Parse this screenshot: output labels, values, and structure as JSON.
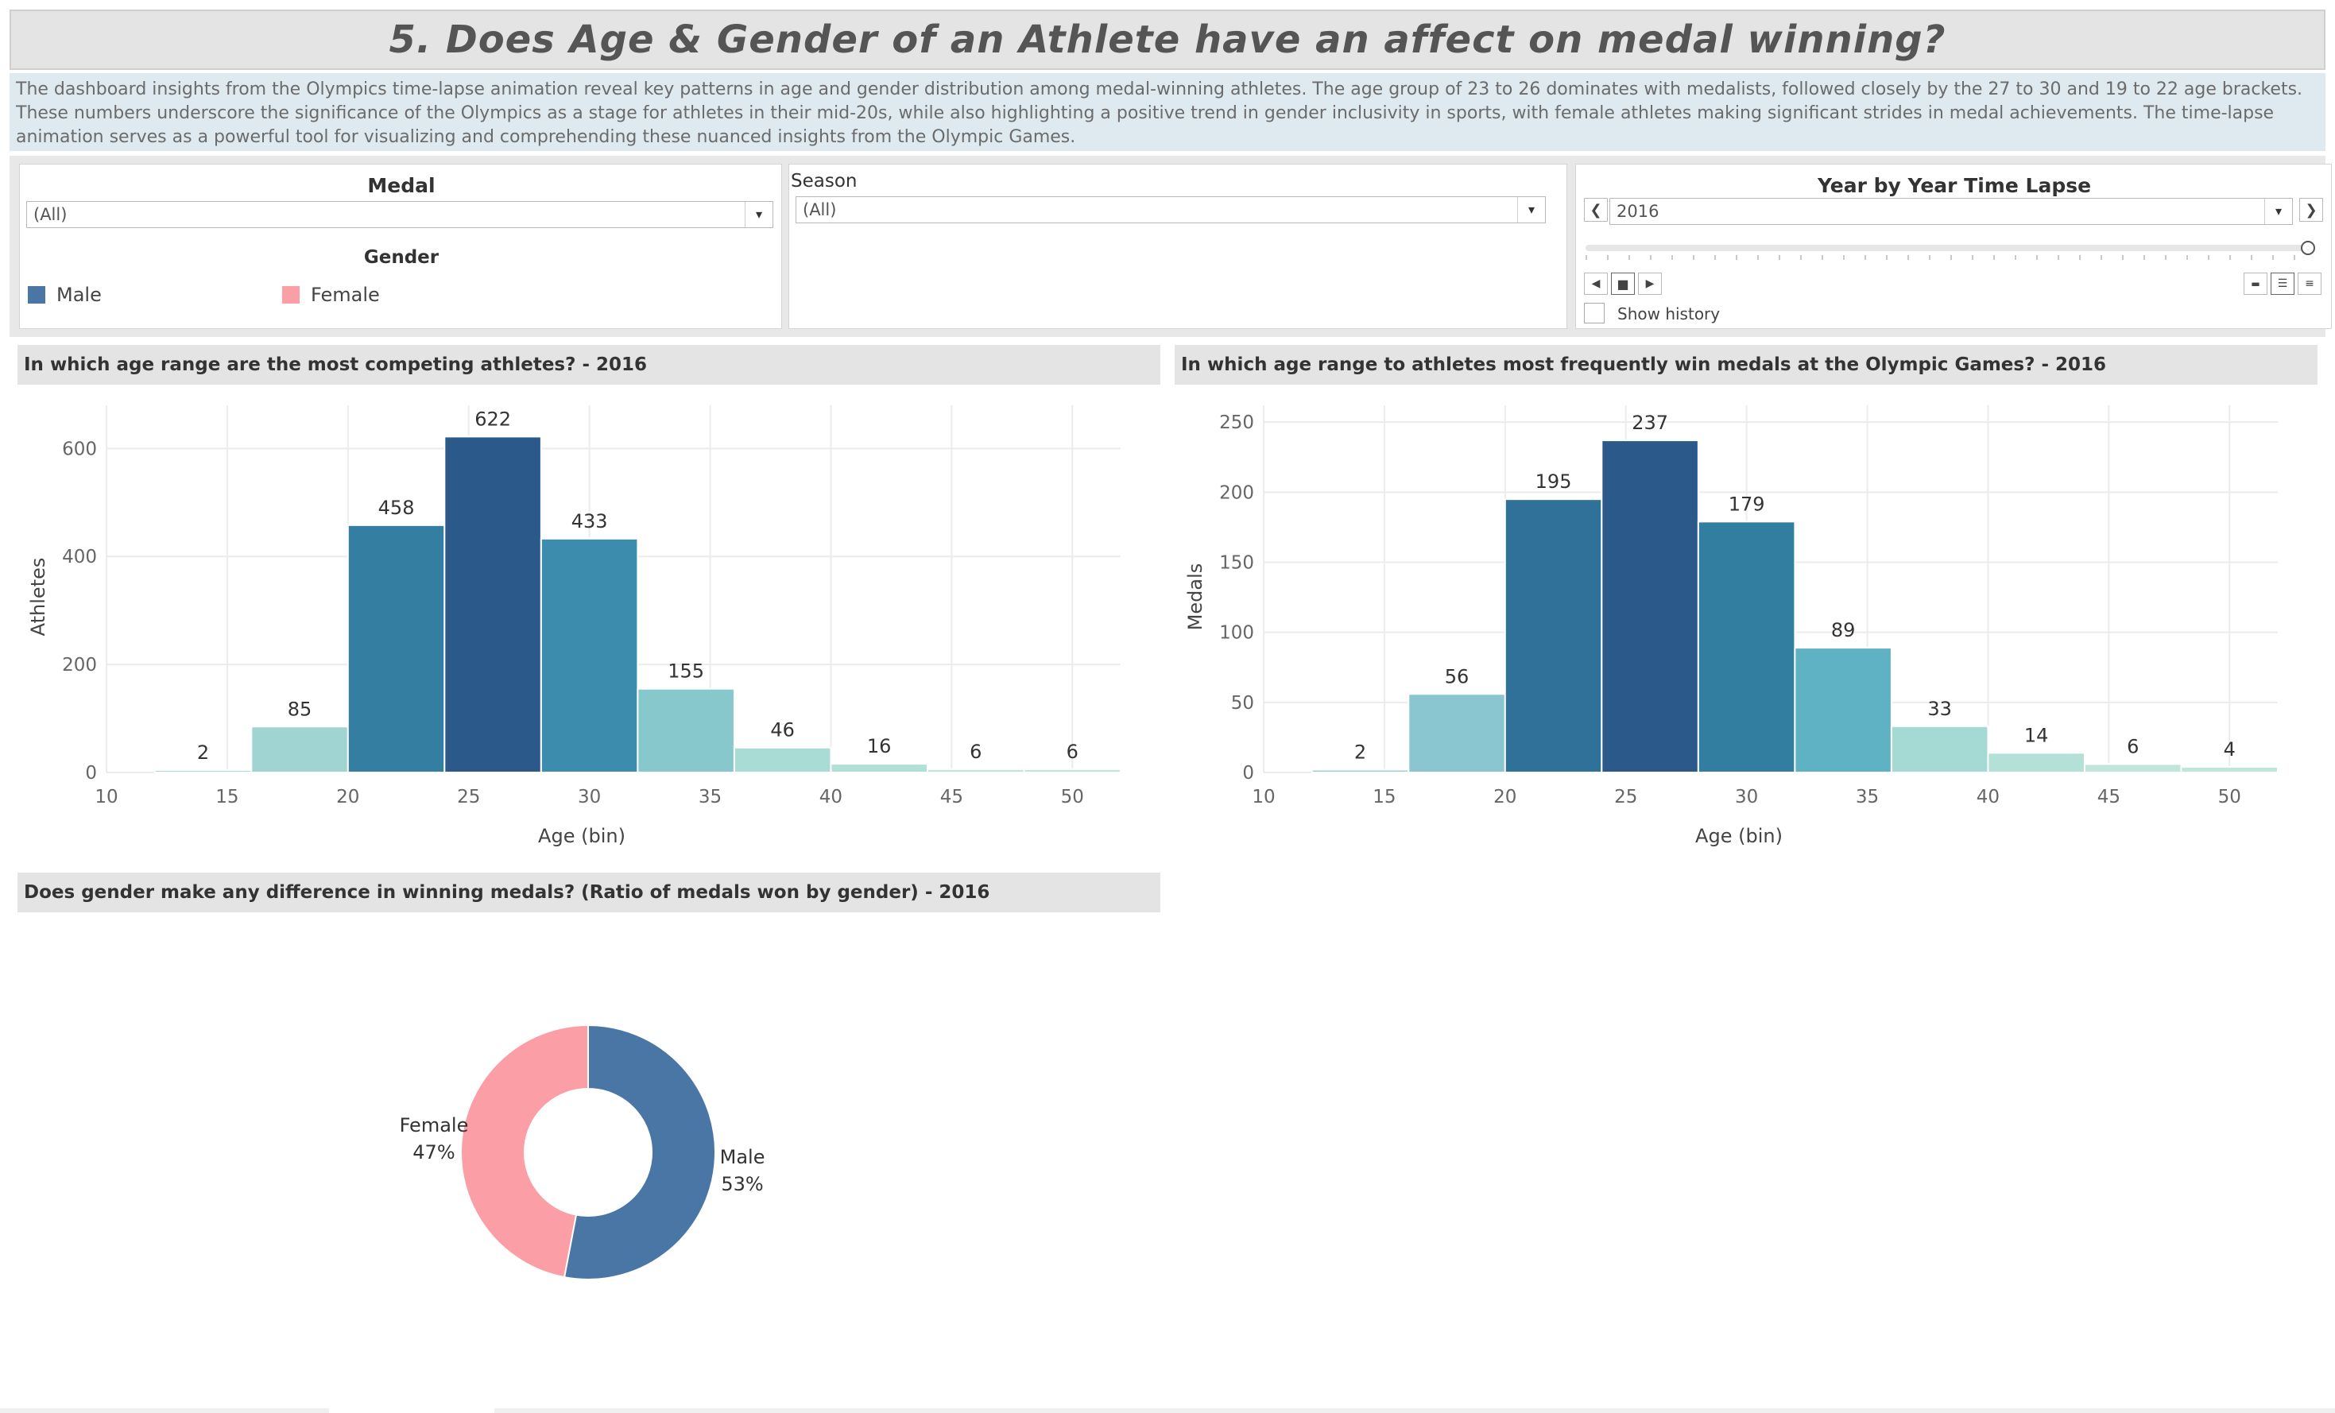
{
  "title": "5. Does Age & Gender of an Athlete have an affect on medal winning?",
  "description": "The dashboard insights from the Olympics time-lapse animation reveal key patterns in age and gender distribution among medal-winning athletes. The age group of 23 to 26 dominates with medalists, followed closely by the 27 to 30 and 19 to 22 age brackets.  These numbers underscore the significance of the Olympics as a stage for athletes in their mid-20s, while also highlighting a positive trend in gender inclusivity in sports, with female athletes making significant strides in medal achievements. The time-lapse animation serves as a powerful tool for visualizing and comprehending these nuanced insights from the Olympic Games.",
  "filters": {
    "medal": {
      "label": "Medal",
      "value": "(All)"
    },
    "gender": {
      "label": "Gender",
      "items": [
        {
          "label": "Male",
          "color": "#4a76a6"
        },
        {
          "label": "Female",
          "color": "#fb9ea5"
        }
      ]
    },
    "season": {
      "label": "Season",
      "value": "(All)"
    },
    "year": {
      "label": "Year by Year Time Lapse",
      "value": "2016",
      "slider_position": 1.0,
      "show_history_label": "Show history",
      "show_history_checked": false
    }
  },
  "icons": {
    "prev": "chevron-left-icon",
    "next": "chevron-right-icon",
    "dropdown": "caret-down-icon",
    "play_back": "play-back-icon",
    "stop": "stop-icon",
    "play_forward": "play-forward-icon",
    "speed_slow": "speed-slow-icon",
    "speed_medium": "speed-medium-icon",
    "speed_fast": "speed-fast-icon"
  },
  "sections": {
    "athletes_title": "In which age range are the most competing athletes? - 2016",
    "medals_title": "In which age range to athletes most frequently win medals at the Olympic Games? - 2016",
    "gender_title": "Does gender make any difference in winning medals? (Ratio of medals won by gender) - 2016"
  },
  "chart_data": [
    {
      "type": "bar",
      "title": "In which age range are the most competing athletes? - 2016",
      "xlabel": "Age (bin)",
      "ylabel": "Athletes",
      "x_ticks": [
        10,
        15,
        20,
        25,
        30,
        35,
        40,
        45,
        50
      ],
      "y_ticks": [
        0,
        200,
        400,
        600
      ],
      "xlim": [
        10,
        52
      ],
      "ylim": [
        0,
        680
      ],
      "bin_width": 4,
      "bins": [
        12,
        16,
        20,
        24,
        28,
        32,
        36,
        40,
        44,
        48
      ],
      "values": [
        2,
        85,
        458,
        622,
        433,
        155,
        46,
        16,
        6,
        6
      ],
      "colors": [
        "#a9d9d7",
        "#a0d4d2",
        "#337ea1",
        "#2b5a8a",
        "#3c8dad",
        "#86c8cc",
        "#aadcd6",
        "#b0e0d6",
        "#bfe6dc",
        "#bfe6dc"
      ],
      "grid": true
    },
    {
      "type": "bar",
      "title": "In which age range to athletes most frequently win medals at the Olympic Games? - 2016",
      "xlabel": "Age (bin)",
      "ylabel": "Medals",
      "x_ticks": [
        10,
        15,
        20,
        25,
        30,
        35,
        40,
        45,
        50
      ],
      "y_ticks": [
        0,
        50,
        100,
        150,
        200,
        250
      ],
      "xlim": [
        10,
        52
      ],
      "ylim": [
        0,
        262
      ],
      "bin_width": 4,
      "bins": [
        12,
        16,
        20,
        24,
        28,
        32,
        36,
        40,
        44,
        48
      ],
      "values": [
        2,
        56,
        195,
        237,
        179,
        89,
        33,
        14,
        6,
        4
      ],
      "colors": [
        "#9fd3d4",
        "#89c6cf",
        "#2f7199",
        "#2b5a8a",
        "#327ea0",
        "#5fb2c3",
        "#a5d9d3",
        "#b4e1d7",
        "#c0e6dc",
        "#c0e6dc"
      ],
      "grid": true
    },
    {
      "type": "pie",
      "title": "Does gender make any difference in winning medals? (Ratio of medals won by gender) - 2016",
      "donut": true,
      "slices": [
        {
          "label": "Male",
          "pct_label": "53%",
          "value": 53,
          "color": "#4a76a6"
        },
        {
          "label": "Female",
          "pct_label": "47%",
          "value": 47,
          "color": "#fb9ea5"
        }
      ]
    }
  ]
}
